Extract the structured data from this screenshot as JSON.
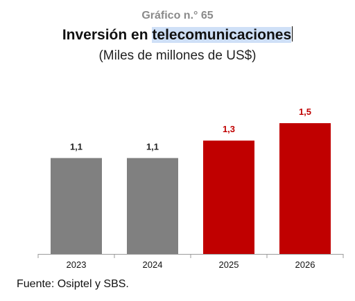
{
  "header": {
    "kicker": "Gráfico n.° 65",
    "title_part1": "Inversión en ",
    "title_part2": "telecomunicaciones",
    "subtitle": "(Miles de millones de US$)"
  },
  "footer": {
    "source": "Fuente: Osiptel y SBS."
  },
  "colors": {
    "gray_bar": "#808080",
    "red_bar": "#c00000",
    "gray_label": "#222222",
    "red_label": "#c00000",
    "axis": "#9a9a9a"
  },
  "chart_data": {
    "type": "bar",
    "categories": [
      "2023",
      "2024",
      "2025",
      "2026"
    ],
    "values": [
      1.1,
      1.1,
      1.3,
      1.5
    ],
    "value_labels": [
      "1,1",
      "1,1",
      "1,3",
      "1,5"
    ],
    "bar_colors": [
      "gray",
      "gray",
      "red",
      "red"
    ],
    "ylim": [
      0,
      1.5
    ],
    "grid": false,
    "legend": "none"
  }
}
